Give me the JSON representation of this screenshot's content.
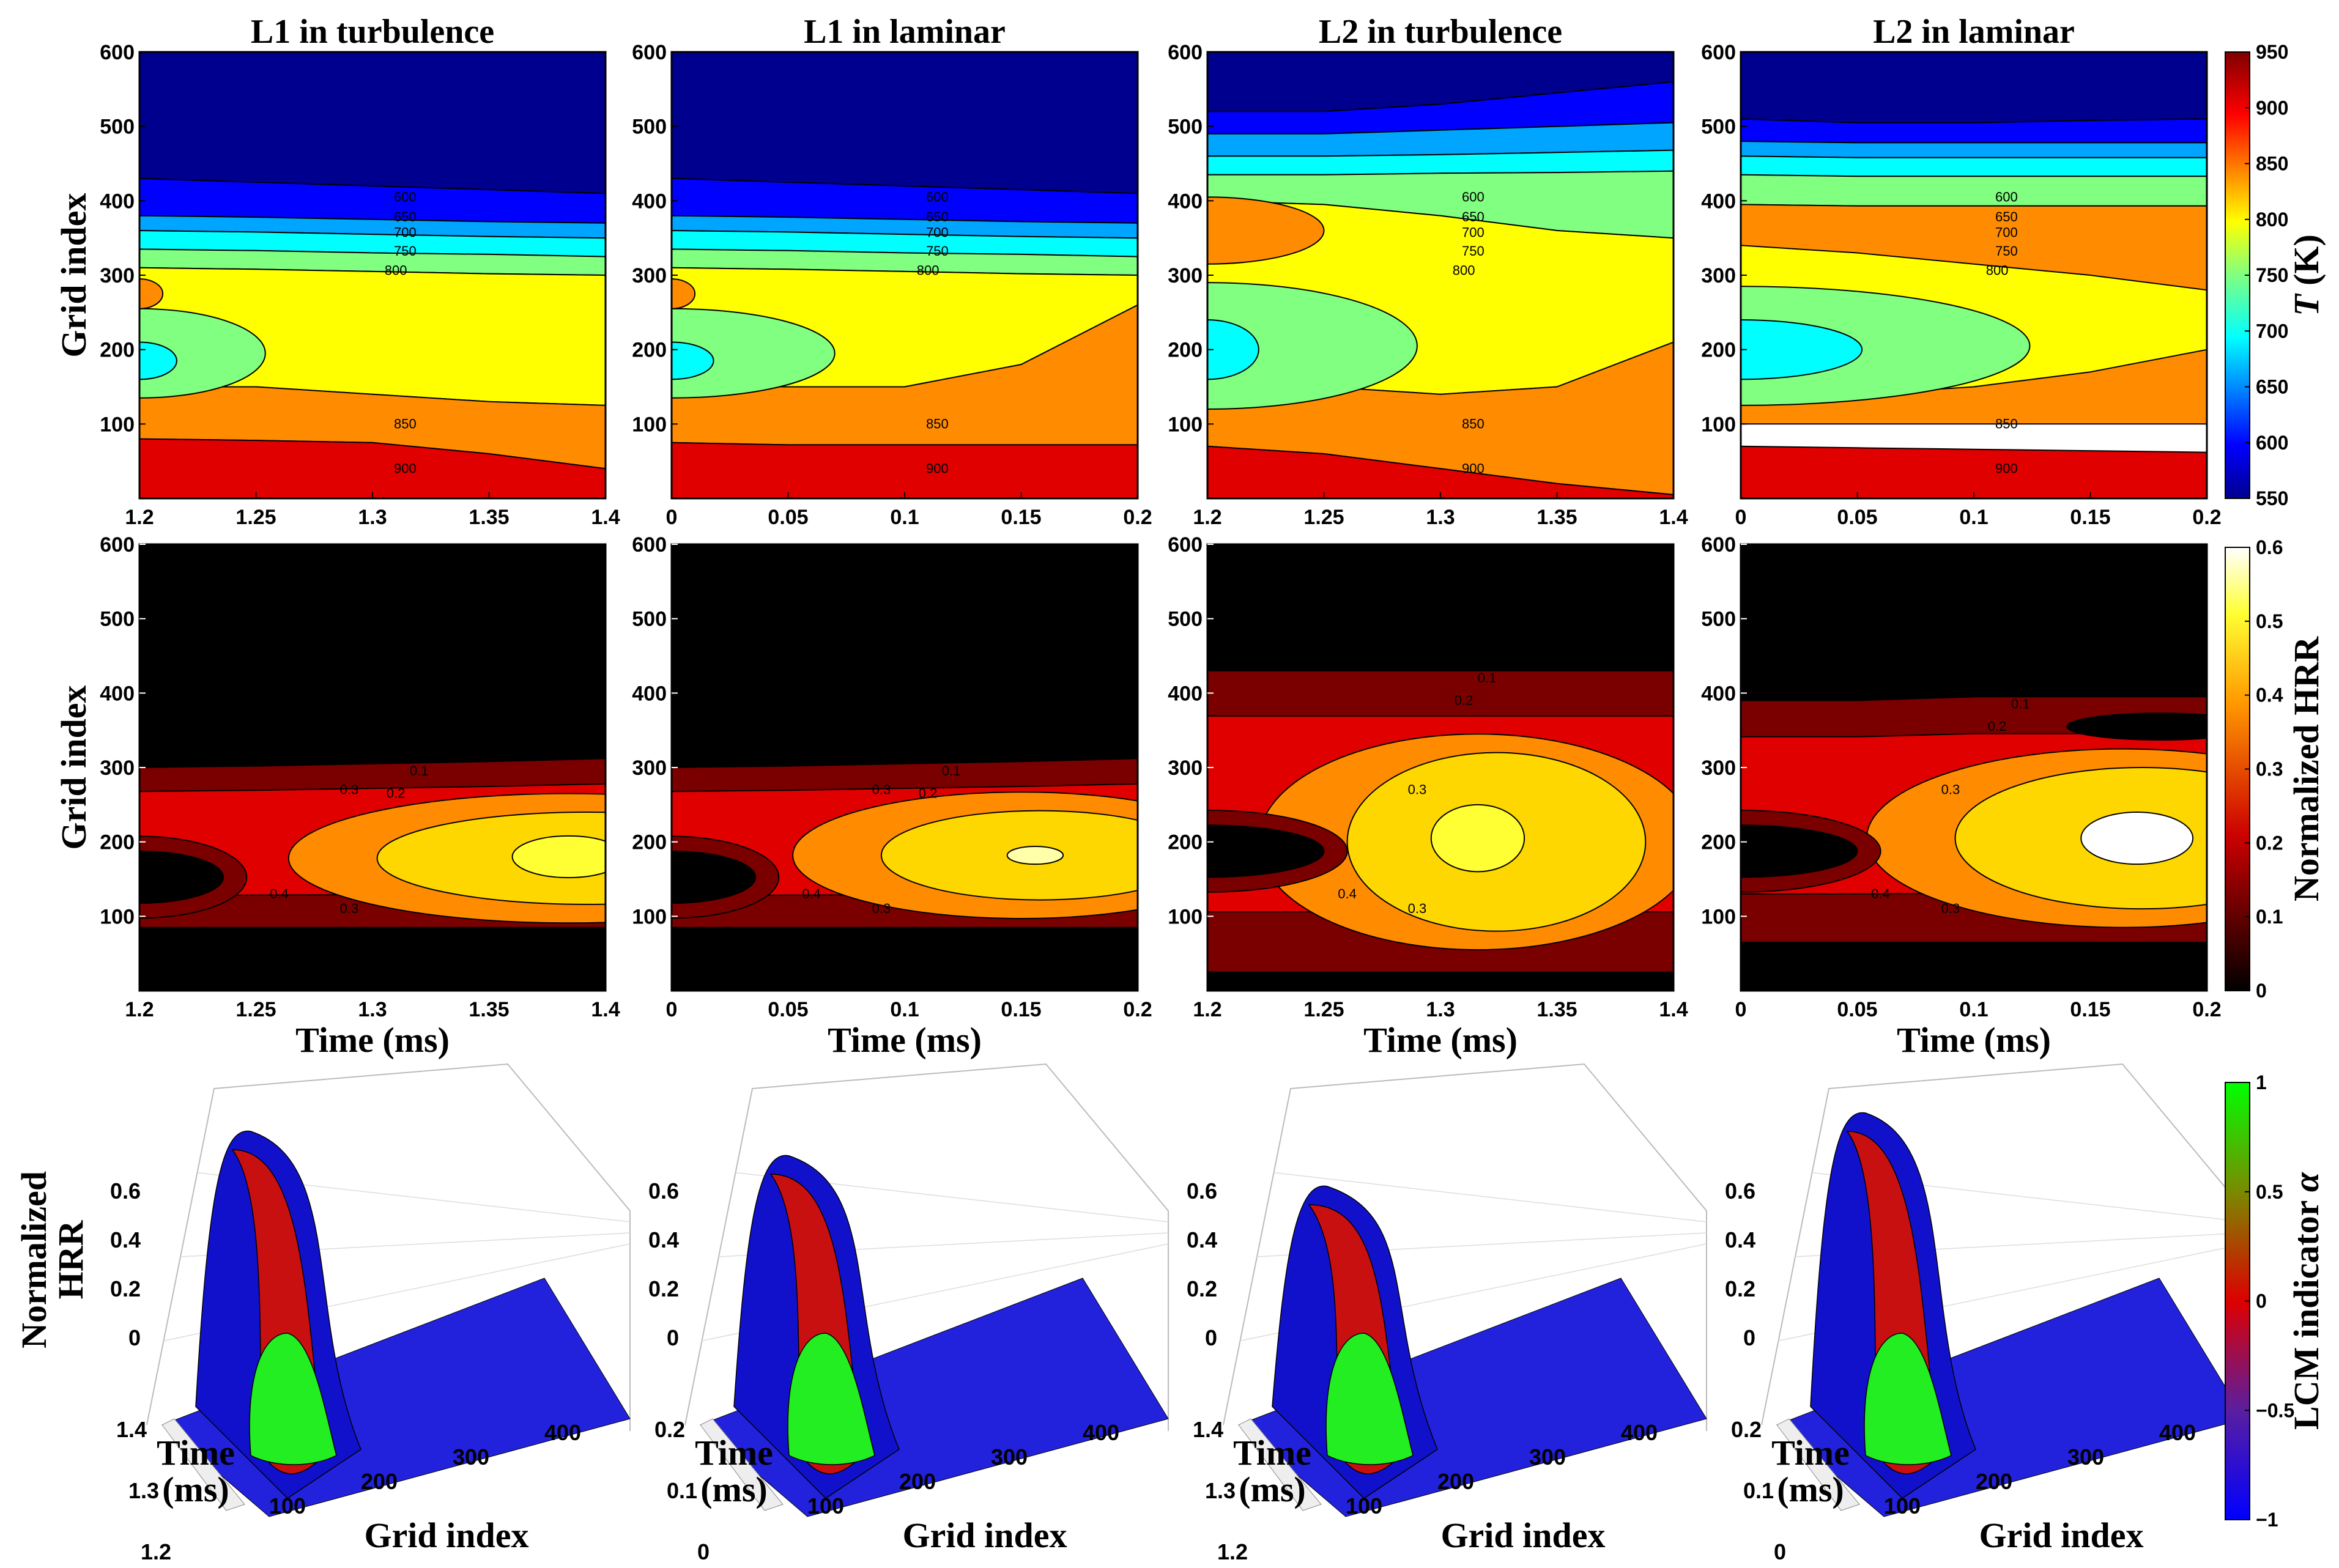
{
  "chart_data": {
    "type": "heatmap",
    "panel_titles": [
      "L1 in turbulence",
      "L1 in laminar",
      "L2 in turbulence",
      "L2 in laminar"
    ],
    "rows": [
      {
        "name": "temperature",
        "ylabel": "Grid index",
        "xlabel": "",
        "colorbar": {
          "label_pre": "T",
          "label_post": " (K)",
          "range": [
            550,
            950
          ],
          "ticks": [
            "950",
            "900",
            "850",
            "800",
            "750",
            "700",
            "650",
            "600",
            "550"
          ],
          "palette": "jet"
        },
        "contour_levels": [
          "550",
          "600",
          "650",
          "700",
          "750",
          "800",
          "850",
          "900"
        ]
      },
      {
        "name": "heat release rate",
        "ylabel": "Grid index",
        "xlabel": "Time (ms)",
        "colorbar": {
          "label": "Normalized HRR",
          "range": [
            0,
            0.6
          ],
          "ticks": [
            "0.6",
            "0.5",
            "0.4",
            "0.3",
            "0.2",
            "0.1",
            "0"
          ],
          "palette": "hot"
        },
        "contour_levels": [
          "0.1",
          "0.15",
          "0.2",
          "0.25",
          "0.3",
          "0.35",
          "0.4",
          "0.45",
          "0.5",
          "0.55",
          "0.6",
          "0.7",
          "0.8"
        ]
      },
      {
        "name": "3d surface",
        "zlabel_lines": [
          "Normalized",
          "HRR"
        ],
        "ylabel_lines": [
          "Time",
          "(ms)"
        ],
        "xlabel": "Grid index",
        "z_ticks": [
          "0.6",
          "0.4",
          "0.2",
          "0"
        ],
        "x_ticks": [
          "100",
          "200",
          "300",
          "400"
        ],
        "colorbar": {
          "label_pre": "LCM indicator ",
          "label_post": "α",
          "range": [
            -1,
            1
          ],
          "ticks": [
            "1",
            "0.5",
            "0",
            "−0.5",
            "−1"
          ],
          "palette": "blue-red-green"
        }
      }
    ],
    "panels": [
      {
        "x_ticks": [
          "1.2",
          "1.25",
          "1.3",
          "1.35",
          "1.4"
        ],
        "x_range": [
          1.2,
          1.4
        ],
        "t3d_ticks": [
          "1.4",
          "1.3",
          "1.2"
        ]
      },
      {
        "x_ticks": [
          "0",
          "0.05",
          "0.1",
          "0.15",
          "0.2"
        ],
        "x_range": [
          0,
          0.2
        ],
        "t3d_ticks": [
          "0.2",
          "0.1",
          "0"
        ]
      },
      {
        "x_ticks": [
          "1.2",
          "1.25",
          "1.3",
          "1.35",
          "1.4"
        ],
        "x_range": [
          1.2,
          1.4
        ],
        "t3d_ticks": [
          "1.4",
          "1.3",
          "1.2"
        ]
      },
      {
        "x_ticks": [
          "0",
          "0.05",
          "0.1",
          "0.15",
          "0.2"
        ],
        "x_range": [
          0,
          0.2
        ],
        "t3d_ticks": [
          "0.2",
          "0.1",
          "0"
        ]
      }
    ],
    "y_ticks": [
      "600",
      "500",
      "400",
      "300",
      "200",
      "100"
    ],
    "y_range": [
      0,
      600
    ]
  }
}
